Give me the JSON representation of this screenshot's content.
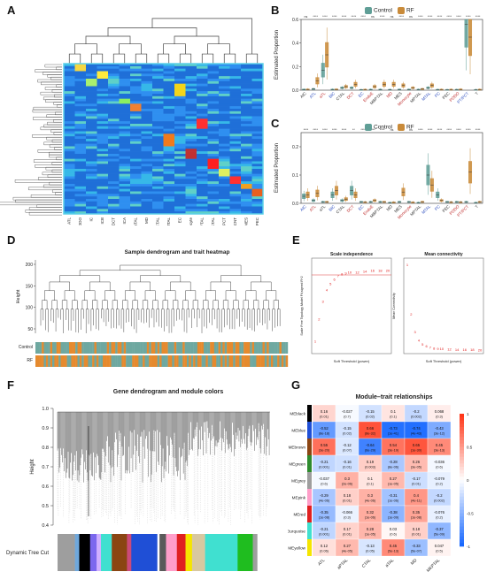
{
  "panels": {
    "A": {
      "letter": "A",
      "columns": [
        "ATL",
        "PODO",
        "IC",
        "ICB",
        "DCT",
        "ICA",
        "aTAL",
        "MD",
        "CTAL",
        "MTAL",
        "EC",
        "Monocyte",
        "MEPTAL",
        "MKTAL",
        "PT/PCT",
        "CNT",
        "MES",
        "PEC"
      ]
    },
    "B": {
      "letter": "B"
    },
    "C": {
      "letter": "C"
    },
    "D": {
      "letter": "D",
      "title": "Sample dendrogram and trait heatmap",
      "ylabel": "Height",
      "yticks": [
        "200",
        "150",
        "100",
        "50"
      ],
      "traits": [
        "Control",
        "RF"
      ]
    },
    "E": {
      "letter": "E",
      "left_title": "Scale independence",
      "right_title": "Mean connectivity",
      "left_ylabel": "Scale Free Topology Model Fit,signed R^2",
      "right_ylabel": "Mean Connectivity",
      "xlabel": "Soft Threshold (power)"
    },
    "F": {
      "letter": "F",
      "title": "Gene dendrogram and module colors",
      "ylabel": "Height",
      "yticks": [
        "1.0",
        "0.9",
        "0.8",
        "0.7",
        "0.6",
        "0.5",
        "0.4"
      ],
      "bar_label": "Dynamic Tree Cut"
    },
    "G": {
      "letter": "G",
      "title": "Module–trait relationships",
      "modules": [
        "MEblack",
        "MEblue",
        "MEbrown",
        "MEgreen",
        "MEgrey",
        "MEpink",
        "MEred",
        "MEturquoise",
        "MEyellow"
      ],
      "module_colors": [
        "#000000",
        "#1f4fd6",
        "#8b4513",
        "#2e8b2e",
        "#9e9e9e",
        "#ff9ec9",
        "#e02020",
        "#40e0d0",
        "#f5e500"
      ],
      "traits": [
        "ATL",
        "aPTAL",
        "CTAL",
        "aTAL",
        "MD",
        "MKPTAL"
      ],
      "cells": [
        [
          [
            "0.16",
            "(0.01)"
          ],
          [
            "-0.027",
            "(0.7)"
          ],
          [
            "-0.15",
            "(0.02)"
          ],
          [
            "0.1",
            "(0.1)"
          ],
          [
            "-0.2",
            "(0.002)"
          ],
          [
            "0.068",
            "(0.3)"
          ]
        ],
        [
          [
            "-0.52",
            "(8e-18)"
          ],
          [
            "-0.15",
            "(0.02)"
          ],
          [
            "0.66",
            "(8e-32)"
          ],
          [
            "-0.73",
            "(1e-41)"
          ],
          [
            "-0.74",
            "(4e-43)"
          ],
          [
            "-0.43",
            "(3e-12)"
          ]
        ],
        [
          [
            "0.55",
            "(3e-20)"
          ],
          [
            "-0.12",
            "(0.07)"
          ],
          [
            "-0.64",
            "(6e-29)"
          ],
          [
            "0.54",
            "(3e-19)"
          ],
          [
            "0.65",
            "(1e-30)"
          ],
          [
            "0.45",
            "(3e-13)"
          ]
        ],
        [
          [
            "-0.21",
            "(0.001)"
          ],
          [
            "-0.16",
            "(0.01)"
          ],
          [
            "0.19",
            "(0.003)"
          ],
          [
            "-0.28",
            "(8e-06)"
          ],
          [
            "0.26",
            "(3e-05)"
          ],
          [
            "-0.036",
            "(0.6)"
          ]
        ],
        [
          [
            "-0.037",
            "(0.6)"
          ],
          [
            "0.3",
            "(2e-06)"
          ],
          [
            "0.1",
            "(0.1)"
          ],
          [
            "0.27",
            "(1e-05)"
          ],
          [
            "-0.17",
            "(0.01)"
          ],
          [
            "-0.079",
            "(0.2)"
          ]
        ],
        [
          [
            "-0.29",
            "(4e-06)"
          ],
          [
            "0.18",
            "(0.01)"
          ],
          [
            "0.3",
            "(4e-06)"
          ],
          [
            "-0.31",
            "(1e-06)"
          ],
          [
            "0.4",
            "(4e-11)"
          ],
          [
            "-0.2",
            "(0.002)"
          ]
        ],
        [
          [
            "-0.35",
            "(1e-08)"
          ],
          [
            "-0.066",
            "(0.3)"
          ],
          [
            "0.32",
            "(1e-06)"
          ],
          [
            "-0.38",
            "(1e-09)"
          ],
          [
            "0.35",
            "(1e-08)"
          ],
          [
            "-0.076",
            "(0.2)"
          ]
        ],
        [
          [
            "-0.21",
            "(0.001)"
          ],
          [
            "0.17",
            "(0.01)"
          ],
          [
            "0.28",
            "(1e-05)"
          ],
          [
            "0.03",
            "(0.6)"
          ],
          [
            "0.18",
            "(0.01)"
          ],
          [
            "-0.37",
            "(5e-09)"
          ]
        ],
        [
          [
            "0.12",
            "(0.06)"
          ],
          [
            "0.27",
            "(4e-05)"
          ],
          [
            "-0.13",
            "(0.05)"
          ],
          [
            "0.45",
            "(5e-13)"
          ],
          [
            "-0.33",
            "(5e-07)"
          ],
          [
            "0.047",
            "(0.5)"
          ]
        ]
      ],
      "scale": [
        "1",
        "0.5",
        "0",
        "-0.5",
        "-1"
      ]
    }
  },
  "charts": {
    "B": {
      "ylabel": "Estimated Proportion",
      "legend": [
        "Control",
        "RF"
      ],
      "legend_colors": [
        "#5f9e96",
        "#c98b3a"
      ],
      "ylim": [
        0,
        0.6
      ],
      "yticks": [
        "0.0",
        "0.2",
        "0.4",
        "0.6"
      ],
      "categories": [
        "AIC",
        "ATL",
        "aTL",
        "BIC",
        "CTAL",
        "DCT",
        "EC",
        "EndoE",
        "MBPTAL",
        "MD",
        "MES",
        "Monocyte",
        "MPTAL",
        "MTAL",
        "PC",
        "PEC",
        "PODO",
        "PT/PCT",
        "T"
      ],
      "cat_colors": [
        "#333",
        "#3050c0",
        "#c03030",
        "#3050c0",
        "#333",
        "#c03030",
        "#3050c0",
        "#c03030",
        "#333",
        "#c03030",
        "#333",
        "#c03030",
        "#333",
        "#3050c0",
        "#3050c0",
        "#333",
        "#c03030",
        "#3050c0",
        "#333"
      ],
      "sig": [
        "ns",
        "****",
        "****",
        "****",
        "****",
        "****",
        "****",
        "ns",
        "****",
        "ns",
        "****",
        "ns",
        "****",
        "****",
        "****",
        "****",
        "****",
        "****",
        "****"
      ],
      "control": [
        0.005,
        0.01,
        0.17,
        0.005,
        0.02,
        0.02,
        0.002,
        0.004,
        0.005,
        0.003,
        0.005,
        0.005,
        0.004,
        0.02,
        0.003,
        0.002,
        0.003,
        0.56,
        0.002
      ],
      "rf": [
        0.006,
        0.08,
        0.3,
        0.006,
        0.03,
        0.05,
        0.004,
        0.03,
        0.05,
        0.05,
        0.04,
        0.02,
        0.01,
        0.04,
        0.004,
        0.004,
        0.006,
        0.45,
        0.004
      ]
    },
    "C": {
      "ylabel": "Estimated Proportion",
      "legend": [
        "Control",
        "RF"
      ],
      "legend_colors": [
        "#5f9e96",
        "#c98b3a"
      ],
      "ylim": [
        0,
        0.25
      ],
      "yticks": [
        "0.0",
        "0.1",
        "0.2"
      ],
      "categories": [
        "AIC",
        "ATL",
        "aTL",
        "BIC",
        "CTAL",
        "DCT",
        "EC",
        "EndoE",
        "MBPTAL",
        "MD",
        "MES",
        "Monocyte",
        "MPTAL",
        "MTAL",
        "PC",
        "PEC",
        "PODO",
        "PT/PCT",
        "T"
      ],
      "cat_colors": [
        "#3050c0",
        "#c03030",
        "#333",
        "#3050c0",
        "#333",
        "#c03030",
        "#3050c0",
        "#c03030",
        "#333",
        "#333",
        "#333",
        "#c03030",
        "#333",
        "#3050c0",
        "#3050c0",
        "#333",
        "#c03030",
        "#c03030",
        "#333"
      ],
      "sig": [
        "****",
        "****",
        "****",
        "****",
        "****",
        "**",
        "****",
        "****",
        "****",
        "ns",
        "ns",
        "ns",
        "****",
        "****",
        "****",
        "****",
        "****",
        "****",
        "****"
      ],
      "control": [
        0.025,
        0.01,
        0.005,
        0.03,
        0.01,
        0.045,
        0.005,
        0.005,
        0.005,
        0.002,
        0.005,
        0.005,
        0.002,
        0.1,
        0.03,
        0.005,
        0.005,
        0.005,
        0.002
      ],
      "rf": [
        0.03,
        0.035,
        0.005,
        0.045,
        0.015,
        0.03,
        0.004,
        0.01,
        0.005,
        0.003,
        0.04,
        0.003,
        0.005,
        0.065,
        0.01,
        0.004,
        0.004,
        0.11,
        0.005
      ]
    },
    "E_scale": {
      "x": [
        1,
        2,
        3,
        4,
        5,
        6,
        7,
        8,
        9,
        10,
        12,
        14,
        16,
        18,
        20
      ],
      "y": [
        0.1,
        0.35,
        0.55,
        0.68,
        0.75,
        0.8,
        0.84,
        0.86,
        0.87,
        0.88,
        0.88,
        0.89,
        0.9,
        0.9,
        0.9
      ],
      "threshold": 0.85
    },
    "E_conn": {
      "x": [
        1,
        2,
        3,
        4,
        5,
        6,
        7,
        8,
        9,
        10,
        12,
        14,
        16,
        18,
        20
      ],
      "y": [
        2600,
        1100,
        550,
        300,
        180,
        120,
        80,
        60,
        45,
        35,
        22,
        15,
        10,
        8,
        6
      ]
    }
  }
}
